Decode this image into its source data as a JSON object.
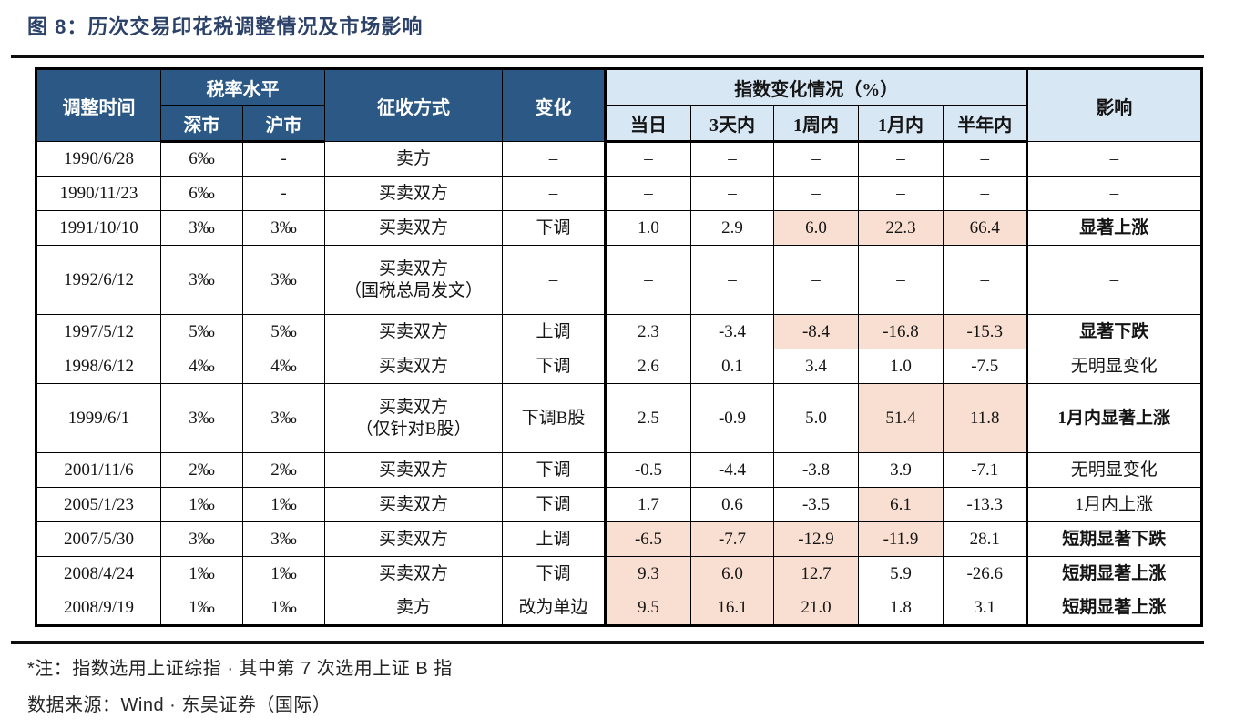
{
  "title": "图 8：历次交易印花税调整情况及市场影响",
  "colors": {
    "header_dark_blue": "#2b5884",
    "header_light_blue": "#d8e7f4",
    "highlight_pink": "#f8dfd1",
    "title_navy": "#2c4269",
    "rule_black": "#0d0d0d"
  },
  "notes": {
    "note1": "*注：指数选用上证综指 · 其中第 7 次选用上证 B 指",
    "note2": "数据来源：Wind · 东吴证券（国际）"
  },
  "chart_data": {
    "type": "table",
    "title": "历次交易印花税调整情况及市场影响",
    "headers": {
      "adjust_time": "调整时间",
      "tax_rate_group": "税率水平",
      "shenzhen": "深市",
      "shanghai": "沪市",
      "collection_method": "征收方式",
      "change": "变化",
      "index_change_group": "指数变化情况（%）",
      "same_day": "当日",
      "three_days": "3天内",
      "one_week": "1周内",
      "one_month": "1月内",
      "half_year": "半年内",
      "impact": "影响"
    },
    "rows": [
      {
        "date": "1990/6/28",
        "shenzhen": "6‰",
        "shanghai": "-",
        "method": "卖方",
        "change": "–",
        "index_changes": [
          "–",
          "–",
          "–",
          "–",
          "–"
        ],
        "highlights": [
          false,
          false,
          false,
          false,
          false
        ],
        "impact": "–",
        "impact_bold": false,
        "tall": false
      },
      {
        "date": "1990/11/23",
        "shenzhen": "6‰",
        "shanghai": "-",
        "method": "买卖双方",
        "change": "–",
        "index_changes": [
          "–",
          "–",
          "–",
          "–",
          "–"
        ],
        "highlights": [
          false,
          false,
          false,
          false,
          false
        ],
        "impact": "–",
        "impact_bold": false,
        "tall": false
      },
      {
        "date": "1991/10/10",
        "shenzhen": "3‰",
        "shanghai": "3‰",
        "method": "买卖双方",
        "change": "下调",
        "index_changes": [
          "1.0",
          "2.9",
          "6.0",
          "22.3",
          "66.4"
        ],
        "highlights": [
          false,
          false,
          true,
          true,
          true
        ],
        "impact": "显著上涨",
        "impact_bold": true,
        "tall": false
      },
      {
        "date": "1992/6/12",
        "shenzhen": "3‰",
        "shanghai": "3‰",
        "method": "买卖双方\n（国税总局发文）",
        "change": "–",
        "index_changes": [
          "–",
          "–",
          "–",
          "–",
          "–"
        ],
        "highlights": [
          false,
          false,
          false,
          false,
          false
        ],
        "impact": "–",
        "impact_bold": false,
        "tall": true
      },
      {
        "date": "1997/5/12",
        "shenzhen": "5‰",
        "shanghai": "5‰",
        "method": "买卖双方",
        "change": "上调",
        "index_changes": [
          "2.3",
          "-3.4",
          "-8.4",
          "-16.8",
          "-15.3"
        ],
        "highlights": [
          false,
          false,
          true,
          true,
          true
        ],
        "impact": "显著下跌",
        "impact_bold": true,
        "tall": false
      },
      {
        "date": "1998/6/12",
        "shenzhen": "4‰",
        "shanghai": "4‰",
        "method": "买卖双方",
        "change": "下调",
        "index_changes": [
          "2.6",
          "0.1",
          "3.4",
          "1.0",
          "-7.5"
        ],
        "highlights": [
          false,
          false,
          false,
          false,
          false
        ],
        "impact": "无明显变化",
        "impact_bold": false,
        "tall": false
      },
      {
        "date": "1999/6/1",
        "shenzhen": "3‰",
        "shanghai": "3‰",
        "method": "买卖双方\n（仅针对B股）",
        "change": "下调B股",
        "index_changes": [
          "2.5",
          "-0.9",
          "5.0",
          "51.4",
          "11.8"
        ],
        "highlights": [
          false,
          false,
          false,
          true,
          true
        ],
        "impact": "1月内显著上涨",
        "impact_bold": true,
        "tall": true
      },
      {
        "date": "2001/11/6",
        "shenzhen": "2‰",
        "shanghai": "2‰",
        "method": "买卖双方",
        "change": "下调",
        "index_changes": [
          "-0.5",
          "-4.4",
          "-3.8",
          "3.9",
          "-7.1"
        ],
        "highlights": [
          false,
          false,
          false,
          false,
          false
        ],
        "impact": "无明显变化",
        "impact_bold": false,
        "tall": false
      },
      {
        "date": "2005/1/23",
        "shenzhen": "1‰",
        "shanghai": "1‰",
        "method": "买卖双方",
        "change": "下调",
        "index_changes": [
          "1.7",
          "0.6",
          "-3.5",
          "6.1",
          "-13.3"
        ],
        "highlights": [
          false,
          false,
          false,
          true,
          false
        ],
        "impact": "1月内上涨",
        "impact_bold": false,
        "tall": false
      },
      {
        "date": "2007/5/30",
        "shenzhen": "3‰",
        "shanghai": "3‰",
        "method": "买卖双方",
        "change": "上调",
        "index_changes": [
          "-6.5",
          "-7.7",
          "-12.9",
          "-11.9",
          "28.1"
        ],
        "highlights": [
          true,
          true,
          true,
          true,
          false
        ],
        "impact": "短期显著下跌",
        "impact_bold": true,
        "tall": false
      },
      {
        "date": "2008/4/24",
        "shenzhen": "1‰",
        "shanghai": "1‰",
        "method": "买卖双方",
        "change": "下调",
        "index_changes": [
          "9.3",
          "6.0",
          "12.7",
          "5.9",
          "-26.6"
        ],
        "highlights": [
          true,
          true,
          true,
          false,
          false
        ],
        "impact": "短期显著上涨",
        "impact_bold": true,
        "tall": false
      },
      {
        "date": "2008/9/19",
        "shenzhen": "1‰",
        "shanghai": "1‰",
        "method": "卖方",
        "change": "改为单边",
        "index_changes": [
          "9.5",
          "16.1",
          "21.0",
          "1.8",
          "3.1"
        ],
        "highlights": [
          true,
          true,
          true,
          false,
          false
        ],
        "impact": "短期显著上涨",
        "impact_bold": true,
        "tall": false
      }
    ]
  }
}
